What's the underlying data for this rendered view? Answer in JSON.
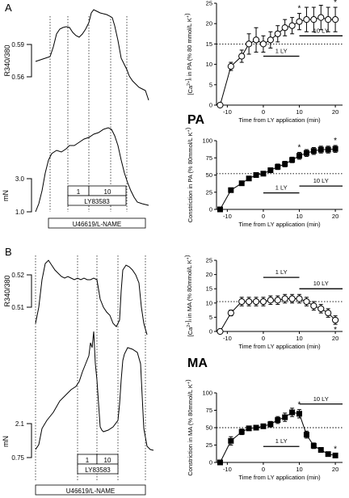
{
  "figure": {
    "panel_a_label": "A",
    "panel_b_label": "B",
    "pa_label": "PA",
    "ma_label": "MA",
    "y_ratio_label": "R340/380",
    "y_force_label": "mN",
    "a_ratio_ticks": [
      "0.59",
      "0.56"
    ],
    "a_force_ticks": [
      "3.0",
      "1.0"
    ],
    "b_ratio_ticks": [
      "0.52",
      "0.51"
    ],
    "b_force_ticks": [
      "2.1",
      "0.75"
    ],
    "box_1": "1",
    "box_10": "10",
    "box_drug": "LY83583",
    "precon_label": "U46619/L-NAME",
    "xlabel": "Time from LY application (min)",
    "bar_1ly": "1 LY",
    "bar_10ly": "10 LY",
    "sig": "*"
  },
  "chart_data": [
    {
      "id": "pa_ca",
      "type": "scatter",
      "marker": "open-circle",
      "ylabel": "[Ca2+]i in PA (% 80 mmol/L K+)",
      "xlim": [
        -13,
        22
      ],
      "ylim": [
        0,
        25
      ],
      "xticks": [
        -10,
        0,
        10,
        20
      ],
      "yticks": [
        0,
        5,
        10,
        15,
        20,
        25
      ],
      "x": [
        -12,
        -9,
        -6,
        -4,
        -2,
        0,
        2,
        4,
        6,
        8,
        10,
        12,
        14,
        16,
        18,
        20
      ],
      "y": [
        0,
        9.5,
        12,
        15,
        16,
        15,
        16,
        17.5,
        19,
        19.5,
        20.5,
        21,
        21,
        21.5,
        21,
        21
      ],
      "err": [
        0,
        1,
        1.5,
        2.5,
        3,
        2,
        2,
        2,
        2,
        2,
        2,
        3,
        3,
        3,
        3,
        3
      ],
      "dotted_line": 15,
      "significant": [
        10,
        20
      ],
      "bars": [
        {
          "label": "1 LY",
          "from": 0,
          "to": 10,
          "y": 12
        },
        {
          "label": "10 LY",
          "from": 10,
          "to": 22,
          "y": 17
        }
      ]
    },
    {
      "id": "pa_con",
      "type": "scatter",
      "marker": "filled-square",
      "ylabel": "Constriction in PA (% 80mmol/L K+)",
      "xlim": [
        -13,
        22
      ],
      "ylim": [
        0,
        100
      ],
      "xticks": [
        -10,
        0,
        10,
        20
      ],
      "yticks": [
        0,
        25,
        50,
        75,
        100
      ],
      "x": [
        -12,
        -9,
        -6,
        -4,
        -2,
        0,
        2,
        4,
        6,
        8,
        10,
        12,
        14,
        16,
        18,
        20
      ],
      "y": [
        0,
        28,
        38,
        45,
        50,
        52,
        57,
        62,
        66,
        72,
        78,
        82,
        85,
        87,
        87,
        88
      ],
      "err": [
        0,
        1,
        2,
        2,
        2,
        2,
        3,
        4,
        4,
        4,
        5,
        5,
        5,
        5,
        5,
        5
      ],
      "dotted_line": 52,
      "significant": [
        10,
        20
      ],
      "bars": [
        {
          "label": "1 LY",
          "from": 0,
          "to": 10,
          "y": 24
        },
        {
          "label": "10 LY",
          "from": 10,
          "to": 22,
          "y": 34
        }
      ]
    },
    {
      "id": "ma_ca",
      "type": "scatter",
      "marker": "open-circle",
      "ylabel": "[Ca2+]i in MA (% 80mmol/L K+)",
      "xlim": [
        -13,
        22
      ],
      "ylim": [
        0,
        25
      ],
      "xticks": [
        -10,
        0,
        10,
        20
      ],
      "yticks": [
        0,
        5,
        10,
        15,
        20,
        25
      ],
      "x": [
        -12,
        -9,
        -6,
        -4,
        -2,
        0,
        2,
        4,
        6,
        8,
        10,
        12,
        14,
        16,
        18,
        20
      ],
      "y": [
        0,
        6.5,
        10.5,
        10.5,
        10.5,
        10.5,
        11,
        11,
        11.5,
        11.5,
        11.5,
        10.5,
        9,
        8,
        6.5,
        4
      ],
      "err": [
        0,
        1,
        1.5,
        1.5,
        1.5,
        1.5,
        1.5,
        1.5,
        1.5,
        1.5,
        1.5,
        1.5,
        1.5,
        1.5,
        1.5,
        1.5
      ],
      "dotted_line": 10.5,
      "significant": [
        20
      ],
      "bars": [
        {
          "label": "1 LY",
          "from": 0,
          "to": 10,
          "y": 19
        },
        {
          "label": "10 LY",
          "from": 10,
          "to": 22,
          "y": 15
        }
      ]
    },
    {
      "id": "ma_con",
      "type": "scatter",
      "marker": "filled-square",
      "ylabel": "Constriction in MA (% 80mmol/L K+)",
      "xlim": [
        -13,
        22
      ],
      "ylim": [
        0,
        100
      ],
      "xticks": [
        -10,
        0,
        10,
        20
      ],
      "yticks": [
        0,
        25,
        50,
        75,
        100
      ],
      "x": [
        -12,
        -9,
        -6,
        -4,
        -2,
        0,
        2,
        4,
        6,
        8,
        10,
        12,
        14,
        16,
        18,
        20
      ],
      "y": [
        0,
        31,
        44,
        49,
        50,
        52,
        55,
        61,
        65,
        72,
        70,
        40,
        24,
        18,
        12,
        10
      ],
      "err": [
        0,
        6,
        4,
        3,
        3,
        3,
        4,
        5,
        6,
        6,
        6,
        5,
        4,
        3,
        2,
        2
      ],
      "dotted_line": 50,
      "significant": [
        10,
        20
      ],
      "bars": [
        {
          "label": "1 LY",
          "from": 0,
          "to": 10,
          "y": 23
        },
        {
          "label": "10 LY",
          "from": 10,
          "to": 22,
          "y": 84
        }
      ]
    }
  ]
}
